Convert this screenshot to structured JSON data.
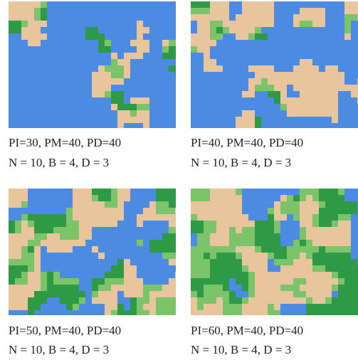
{
  "panels": [
    {
      "line1": "PI=30, PM=40, PD=40",
      "line2": "N = 10, B = 4, D = 3"
    },
    {
      "line1": "PI=40, PM=40, PD=40",
      "line2": "N = 10, B = 4, D = 3"
    },
    {
      "line1": "PI=50, PM=40, PD=40",
      "line2": "N = 10, B = 4, D = 3"
    },
    {
      "line1": "PI=60, PM=40, PD=40",
      "line2": "N = 10, B = 4, D = 3"
    }
  ]
}
